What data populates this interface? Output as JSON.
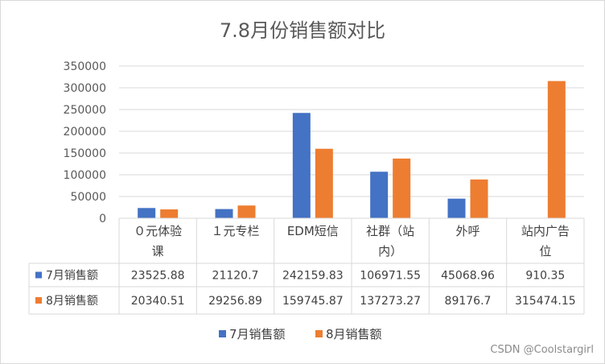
{
  "chart_data": {
    "type": "bar",
    "title": "7.8月份销售额对比",
    "categories": [
      [
        "０元体验",
        "课"
      ],
      [
        "１元专栏"
      ],
      [
        "EDM短信"
      ],
      [
        "社群（站",
        "内）"
      ],
      [
        "外呼"
      ],
      [
        "站内广告",
        "位"
      ]
    ],
    "y_ticks": [
      "0",
      "50000",
      "100000",
      "150000",
      "200000",
      "250000",
      "300000",
      "350000"
    ],
    "ylim": [
      0,
      350000
    ],
    "grid": true,
    "legend_position": "bottom",
    "series": [
      {
        "name": "7月销售额",
        "color": "#4472c4",
        "values": [
          23525.88,
          21120.7,
          242159.83,
          106971.55,
          45068.96,
          910.35
        ],
        "labels": [
          "23525.88",
          "21120.7",
          "242159.83",
          "106971.55",
          "45068.96",
          "910.35"
        ]
      },
      {
        "name": "8月销售额",
        "color": "#ed7d31",
        "values": [
          20340.51,
          29256.89,
          159745.87,
          137273.27,
          89176.7,
          315474.15
        ],
        "labels": [
          "20340.51",
          "29256.89",
          "159745.87",
          "137273.27",
          "89176.7",
          "315474.15"
        ]
      }
    ]
  },
  "watermark": "CSDN @Coolstargirl"
}
